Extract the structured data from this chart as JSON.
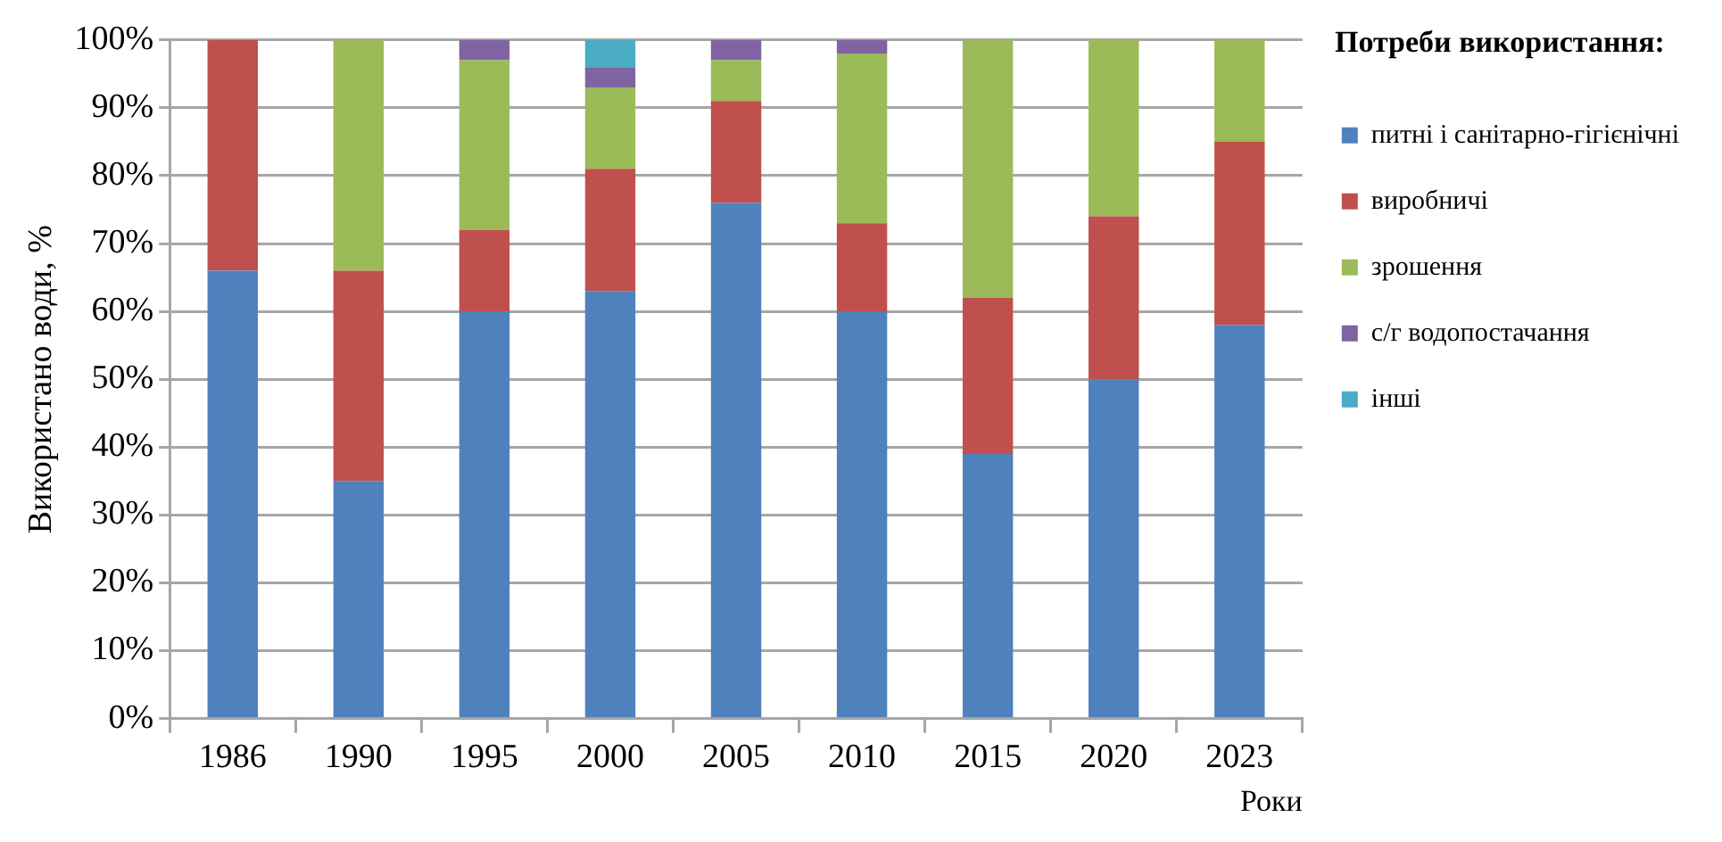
{
  "chart_data": {
    "type": "bar",
    "stacked": true,
    "xlabel": "Роки",
    "ylabel": "Використано води, %",
    "legend_title": "Потреби використання:",
    "legend": "right",
    "grid": "y",
    "categories": [
      "1986",
      "1990",
      "1995",
      "2000",
      "2005",
      "2010",
      "2015",
      "2020",
      "2023"
    ],
    "series": [
      {
        "name": "питні і санітарно-гігієнічні",
        "color": "#4f81bd",
        "values": [
          66,
          35,
          60,
          63,
          76,
          60,
          39,
          50,
          58
        ]
      },
      {
        "name": "виробничі",
        "color": "#c0504d",
        "values": [
          34,
          31,
          12,
          18,
          15,
          13,
          23,
          24,
          27
        ]
      },
      {
        "name": "зрошення",
        "color": "#9bbb59",
        "values": [
          0,
          34,
          25,
          12,
          6,
          25,
          38,
          26,
          15
        ]
      },
      {
        "name": "с/г водопостачання",
        "color": "#8064a2",
        "values": [
          0,
          0,
          3,
          3,
          3,
          2,
          0,
          0,
          0
        ]
      },
      {
        "name": "інші",
        "color": "#4bacc6",
        "values": [
          0,
          0,
          0,
          4,
          0,
          0,
          0,
          0,
          0
        ]
      }
    ],
    "ylim": [
      0,
      100
    ],
    "yticks": [
      {
        "value": 0,
        "label": "0%"
      },
      {
        "value": 10,
        "label": "10%"
      },
      {
        "value": 20,
        "label": "20%"
      },
      {
        "value": 30,
        "label": "30%"
      },
      {
        "value": 40,
        "label": "40%"
      },
      {
        "value": 50,
        "label": "50%"
      },
      {
        "value": 60,
        "label": "60%"
      },
      {
        "value": 70,
        "label": "70%"
      },
      {
        "value": 80,
        "label": "80%"
      },
      {
        "value": 90,
        "label": "90%"
      },
      {
        "value": 100,
        "label": "100%"
      }
    ]
  }
}
